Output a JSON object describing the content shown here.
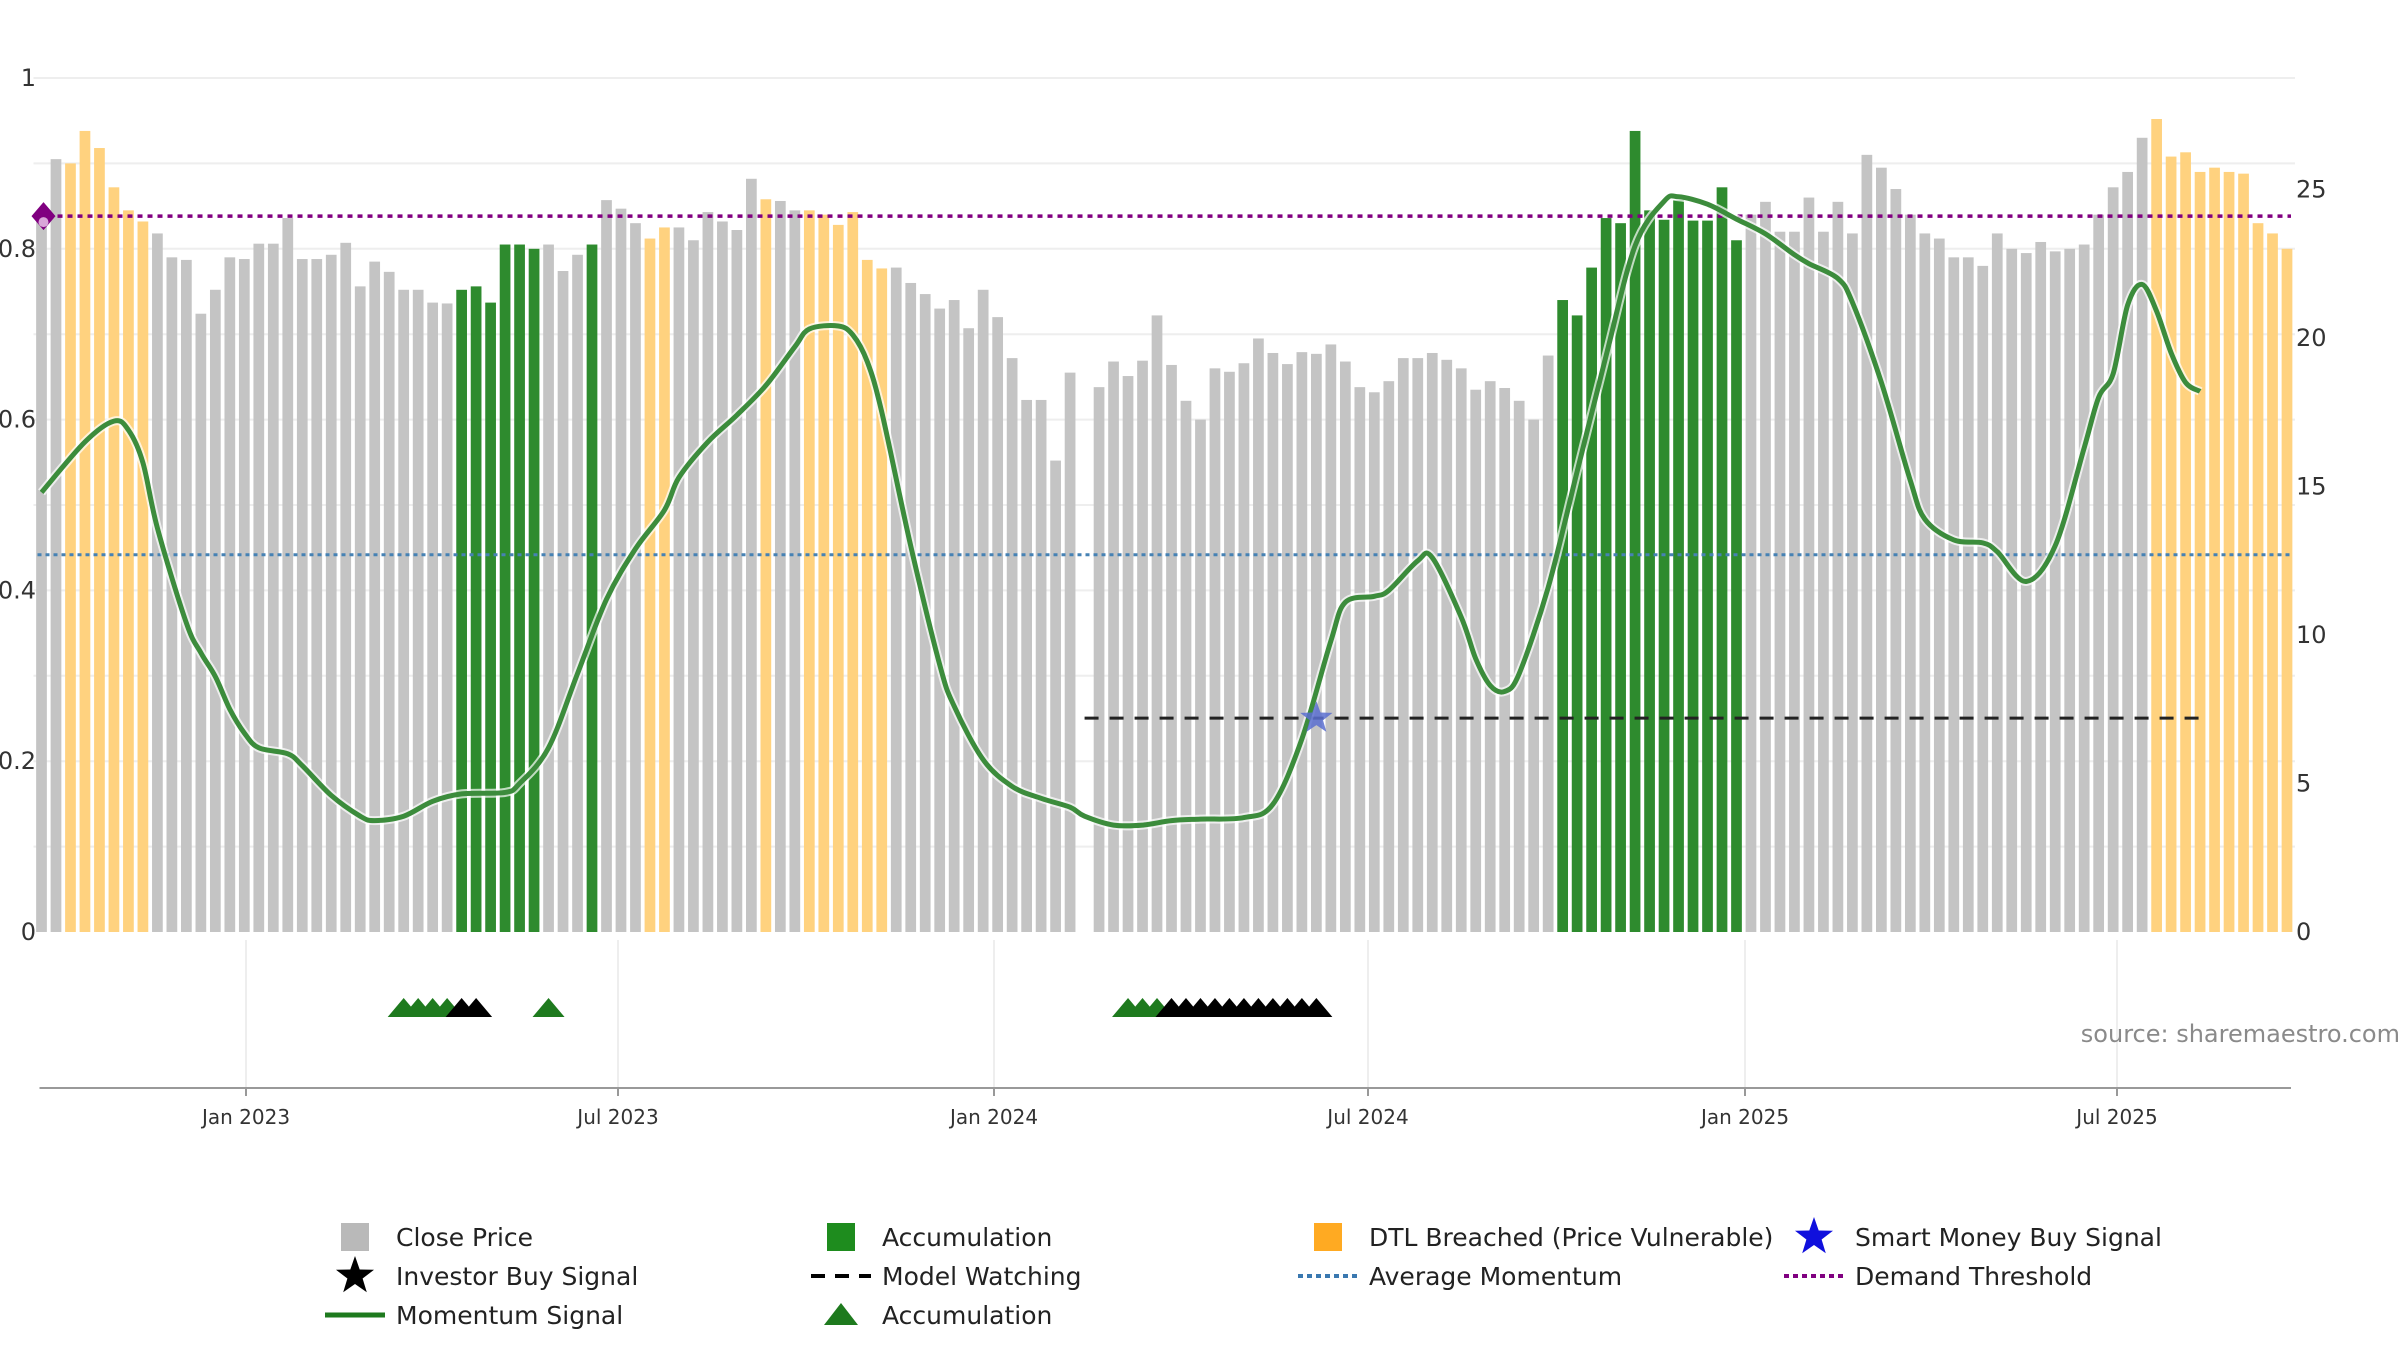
{
  "source_label": "source: sharemaestro.com",
  "colors": {
    "close_price": "#c4c4c4",
    "accumulation": "#2e8b2e",
    "dtl": "#ffd27f",
    "momentum": "#3c8c3c",
    "momentum_strong": "#1f7a1f",
    "demand_threshold": "#800080",
    "average_momentum": "#4682b4",
    "model_watching": "#222222",
    "smart_money": "#2222dd"
  },
  "legend": [
    {
      "label": "Close Price",
      "symbol": "square",
      "color": "#b9b9b9"
    },
    {
      "label": "Accumulation",
      "symbol": "square",
      "color": "#1e8c1e"
    },
    {
      "label": "DTL Breached (Price Vulnerable)",
      "symbol": "square",
      "color": "#ffaa22"
    },
    {
      "label": "Smart Money Buy Signal",
      "symbol": "star",
      "color": "#1010dd"
    },
    {
      "label": "Investor Buy Signal",
      "symbol": "star",
      "color": "#000000"
    },
    {
      "label": "Model Watching",
      "symbol": "dash",
      "color": "#000000"
    },
    {
      "label": "Average Momentum",
      "symbol": "dot",
      "color": "#3a78b0"
    },
    {
      "label": "Demand Threshold",
      "symbol": "dot",
      "color": "#800080"
    },
    {
      "label": "Momentum Signal",
      "symbol": "line",
      "color": "#1e7a1e"
    },
    {
      "label": "Accumulation",
      "symbol": "triangle",
      "color": "#1e7a1e"
    }
  ],
  "chart_data": {
    "type": "bar",
    "x_tick_labels": [
      "Jan 2023",
      "Jul 2023",
      "Jan 2024",
      "Jul 2024",
      "Jan 2025",
      "Jul 2025"
    ],
    "y_left_ticks": [
      "0",
      "0.2",
      "0.4",
      "0.6",
      "0.8",
      "1"
    ],
    "y_right_ticks": [
      "0",
      "5",
      "10",
      "15",
      "20",
      "25"
    ],
    "ylim_left": [
      0,
      1
    ],
    "ylim_right": [
      0,
      28.75
    ],
    "grid": true,
    "legend_position": "bottom",
    "bar_colors": "GGCCCCCCGGGGGGGGGGGGGGGGGGGGGAAAAAAGGGAGGGCCGGGGGGCGGCCCCCCGGGGGGGGGGGGGGGGGGGGGGGGGGGGGGGGGGGGGGGGGGGGGGAAAAAAAAAAAAAGGGGGGGGGGGGGGGGGGGGGGGGGGGGCCCCCCCCCCGCCCCCCCCCGGGGGGGGGGGGGGGGGGGGGGGGGGGGGGGGGGGGGGGGGGGGGGGGGCCCCCCCCCCCGGG",
    "bar_values": [
      0.84,
      0.905,
      0.9,
      0.938,
      0.918,
      0.872,
      0.845,
      0.832,
      0.818,
      0.79,
      0.787,
      0.724,
      0.752,
      0.79,
      0.788,
      0.806,
      0.806,
      0.836,
      0.788,
      0.788,
      0.793,
      0.807,
      0.756,
      0.785,
      0.773,
      0.752,
      0.752,
      0.737,
      0.736,
      0.752,
      0.756,
      0.737,
      0.805,
      0.805,
      0.8,
      0.805,
      0.774,
      0.793,
      0.805,
      0.857,
      0.847,
      0.83,
      0.812,
      0.825,
      0.825,
      0.81,
      0.843,
      0.832,
      0.822,
      0.882,
      0.858,
      0.856,
      0.845,
      0.845,
      0.84,
      0.828,
      0.843,
      0.787,
      0.777,
      0.778,
      0.76,
      0.747,
      0.73,
      0.74,
      0.707,
      0.752,
      0.72,
      0.672,
      0.623,
      0.623,
      0.552,
      0.655,
      0.0,
      0.638,
      0.668,
      0.651,
      0.669,
      0.722,
      0.664,
      0.622,
      0.6,
      0.66,
      0.656,
      0.666,
      0.695,
      0.678,
      0.665,
      0.679,
      0.677,
      0.688,
      0.668,
      0.638,
      0.632,
      0.645,
      0.672,
      0.672,
      0.678,
      0.67,
      0.66,
      0.635,
      0.645,
      0.637,
      0.622,
      0.6,
      0.675,
      0.74,
      0.722,
      0.778,
      0.836,
      0.83,
      0.938,
      0.845,
      0.834,
      0.857,
      0.833,
      0.833,
      0.872,
      0.81,
      0.84,
      0.855,
      0.82,
      0.82,
      0.86,
      0.82,
      0.855,
      0.818,
      0.91,
      0.895,
      0.87,
      0.84,
      0.818,
      0.812,
      0.79,
      0.79,
      0.78,
      0.818,
      0.8,
      0.795,
      0.808,
      0.797,
      0.8,
      0.805,
      0.84,
      0.872,
      0.89,
      0.93,
      0.952,
      0.908,
      0.913,
      0.89,
      0.895,
      0.89,
      0.888,
      0.83,
      0.818,
      0.8
    ],
    "momentum": [
      [
        0,
        14.8
      ],
      [
        3,
        16.5
      ],
      [
        5,
        17.2
      ],
      [
        6,
        16.9
      ],
      [
        7,
        15.8
      ],
      [
        8,
        13.6
      ],
      [
        10,
        10.4
      ],
      [
        11,
        9.4
      ],
      [
        12,
        8.6
      ],
      [
        13,
        7.5
      ],
      [
        14,
        6.7
      ],
      [
        15,
        6.2
      ],
      [
        17,
        6.0
      ],
      [
        18,
        5.6
      ],
      [
        20,
        4.6
      ],
      [
        22,
        3.9
      ],
      [
        23,
        3.75
      ],
      [
        25,
        3.9
      ],
      [
        27,
        4.4
      ],
      [
        29,
        4.65
      ],
      [
        32,
        4.7
      ],
      [
        33,
        5.0
      ],
      [
        35,
        6.2
      ],
      [
        37,
        8.7
      ],
      [
        39,
        11.2
      ],
      [
        41,
        12.9
      ],
      [
        43,
        14.2
      ],
      [
        44,
        15.3
      ],
      [
        46,
        16.5
      ],
      [
        48,
        17.4
      ],
      [
        50,
        18.4
      ],
      [
        52,
        19.7
      ],
      [
        53,
        20.3
      ],
      [
        55,
        20.4
      ],
      [
        56,
        20.1
      ],
      [
        57,
        19.2
      ],
      [
        58,
        17.5
      ],
      [
        60,
        13.0
      ],
      [
        62,
        9.0
      ],
      [
        63,
        7.6
      ],
      [
        65,
        5.8
      ],
      [
        67,
        4.9
      ],
      [
        69,
        4.5
      ],
      [
        71,
        4.2
      ],
      [
        72,
        3.9
      ],
      [
        74,
        3.6
      ],
      [
        76,
        3.6
      ],
      [
        78,
        3.75
      ],
      [
        80,
        3.8
      ],
      [
        83,
        3.85
      ],
      [
        85,
        4.3
      ],
      [
        87,
        6.5
      ],
      [
        89,
        9.8
      ],
      [
        90,
        11.1
      ],
      [
        92,
        11.3
      ],
      [
        93,
        11.5
      ],
      [
        95,
        12.5
      ],
      [
        96,
        12.6
      ],
      [
        98,
        10.6
      ],
      [
        99,
        9.2
      ],
      [
        100,
        8.3
      ],
      [
        101,
        8.1
      ],
      [
        102,
        8.7
      ],
      [
        104,
        11.6
      ],
      [
        106,
        15.5
      ],
      [
        108,
        19.4
      ],
      [
        110,
        23.1
      ],
      [
        112,
        24.6
      ],
      [
        113,
        24.75
      ],
      [
        115,
        24.5
      ],
      [
        117,
        24.0
      ],
      [
        119,
        23.5
      ],
      [
        121,
        22.8
      ],
      [
        122,
        22.5
      ],
      [
        124,
        22.0
      ],
      [
        125,
        21.2
      ],
      [
        127,
        18.5
      ],
      [
        129,
        15.2
      ],
      [
        130,
        13.9
      ],
      [
        132,
        13.2
      ],
      [
        134,
        13.1
      ],
      [
        135,
        12.8
      ],
      [
        137,
        11.8
      ],
      [
        139,
        13.0
      ],
      [
        141,
        16.3
      ],
      [
        142,
        18.0
      ],
      [
        143,
        18.8
      ],
      [
        144,
        21.1
      ],
      [
        145,
        21.8
      ],
      [
        146,
        20.9
      ],
      [
        147,
        19.5
      ],
      [
        148,
        18.5
      ],
      [
        149,
        18.2
      ]
    ],
    "average_momentum": 12.7,
    "demand_threshold": 24.1,
    "model_watching": {
      "from": 72,
      "to": 149,
      "value": 7.2
    },
    "smart_money_buy": [
      {
        "index": 88,
        "value": 7.2
      }
    ],
    "demand_marker": {
      "index": 0,
      "value": 24.1
    },
    "accumulation_markers": [
      25,
      26,
      27,
      28,
      35,
      75,
      76,
      77
    ],
    "investor_markers": [
      29,
      30,
      78,
      79,
      80,
      81,
      82,
      83,
      84,
      85,
      86,
      87,
      88
    ]
  }
}
